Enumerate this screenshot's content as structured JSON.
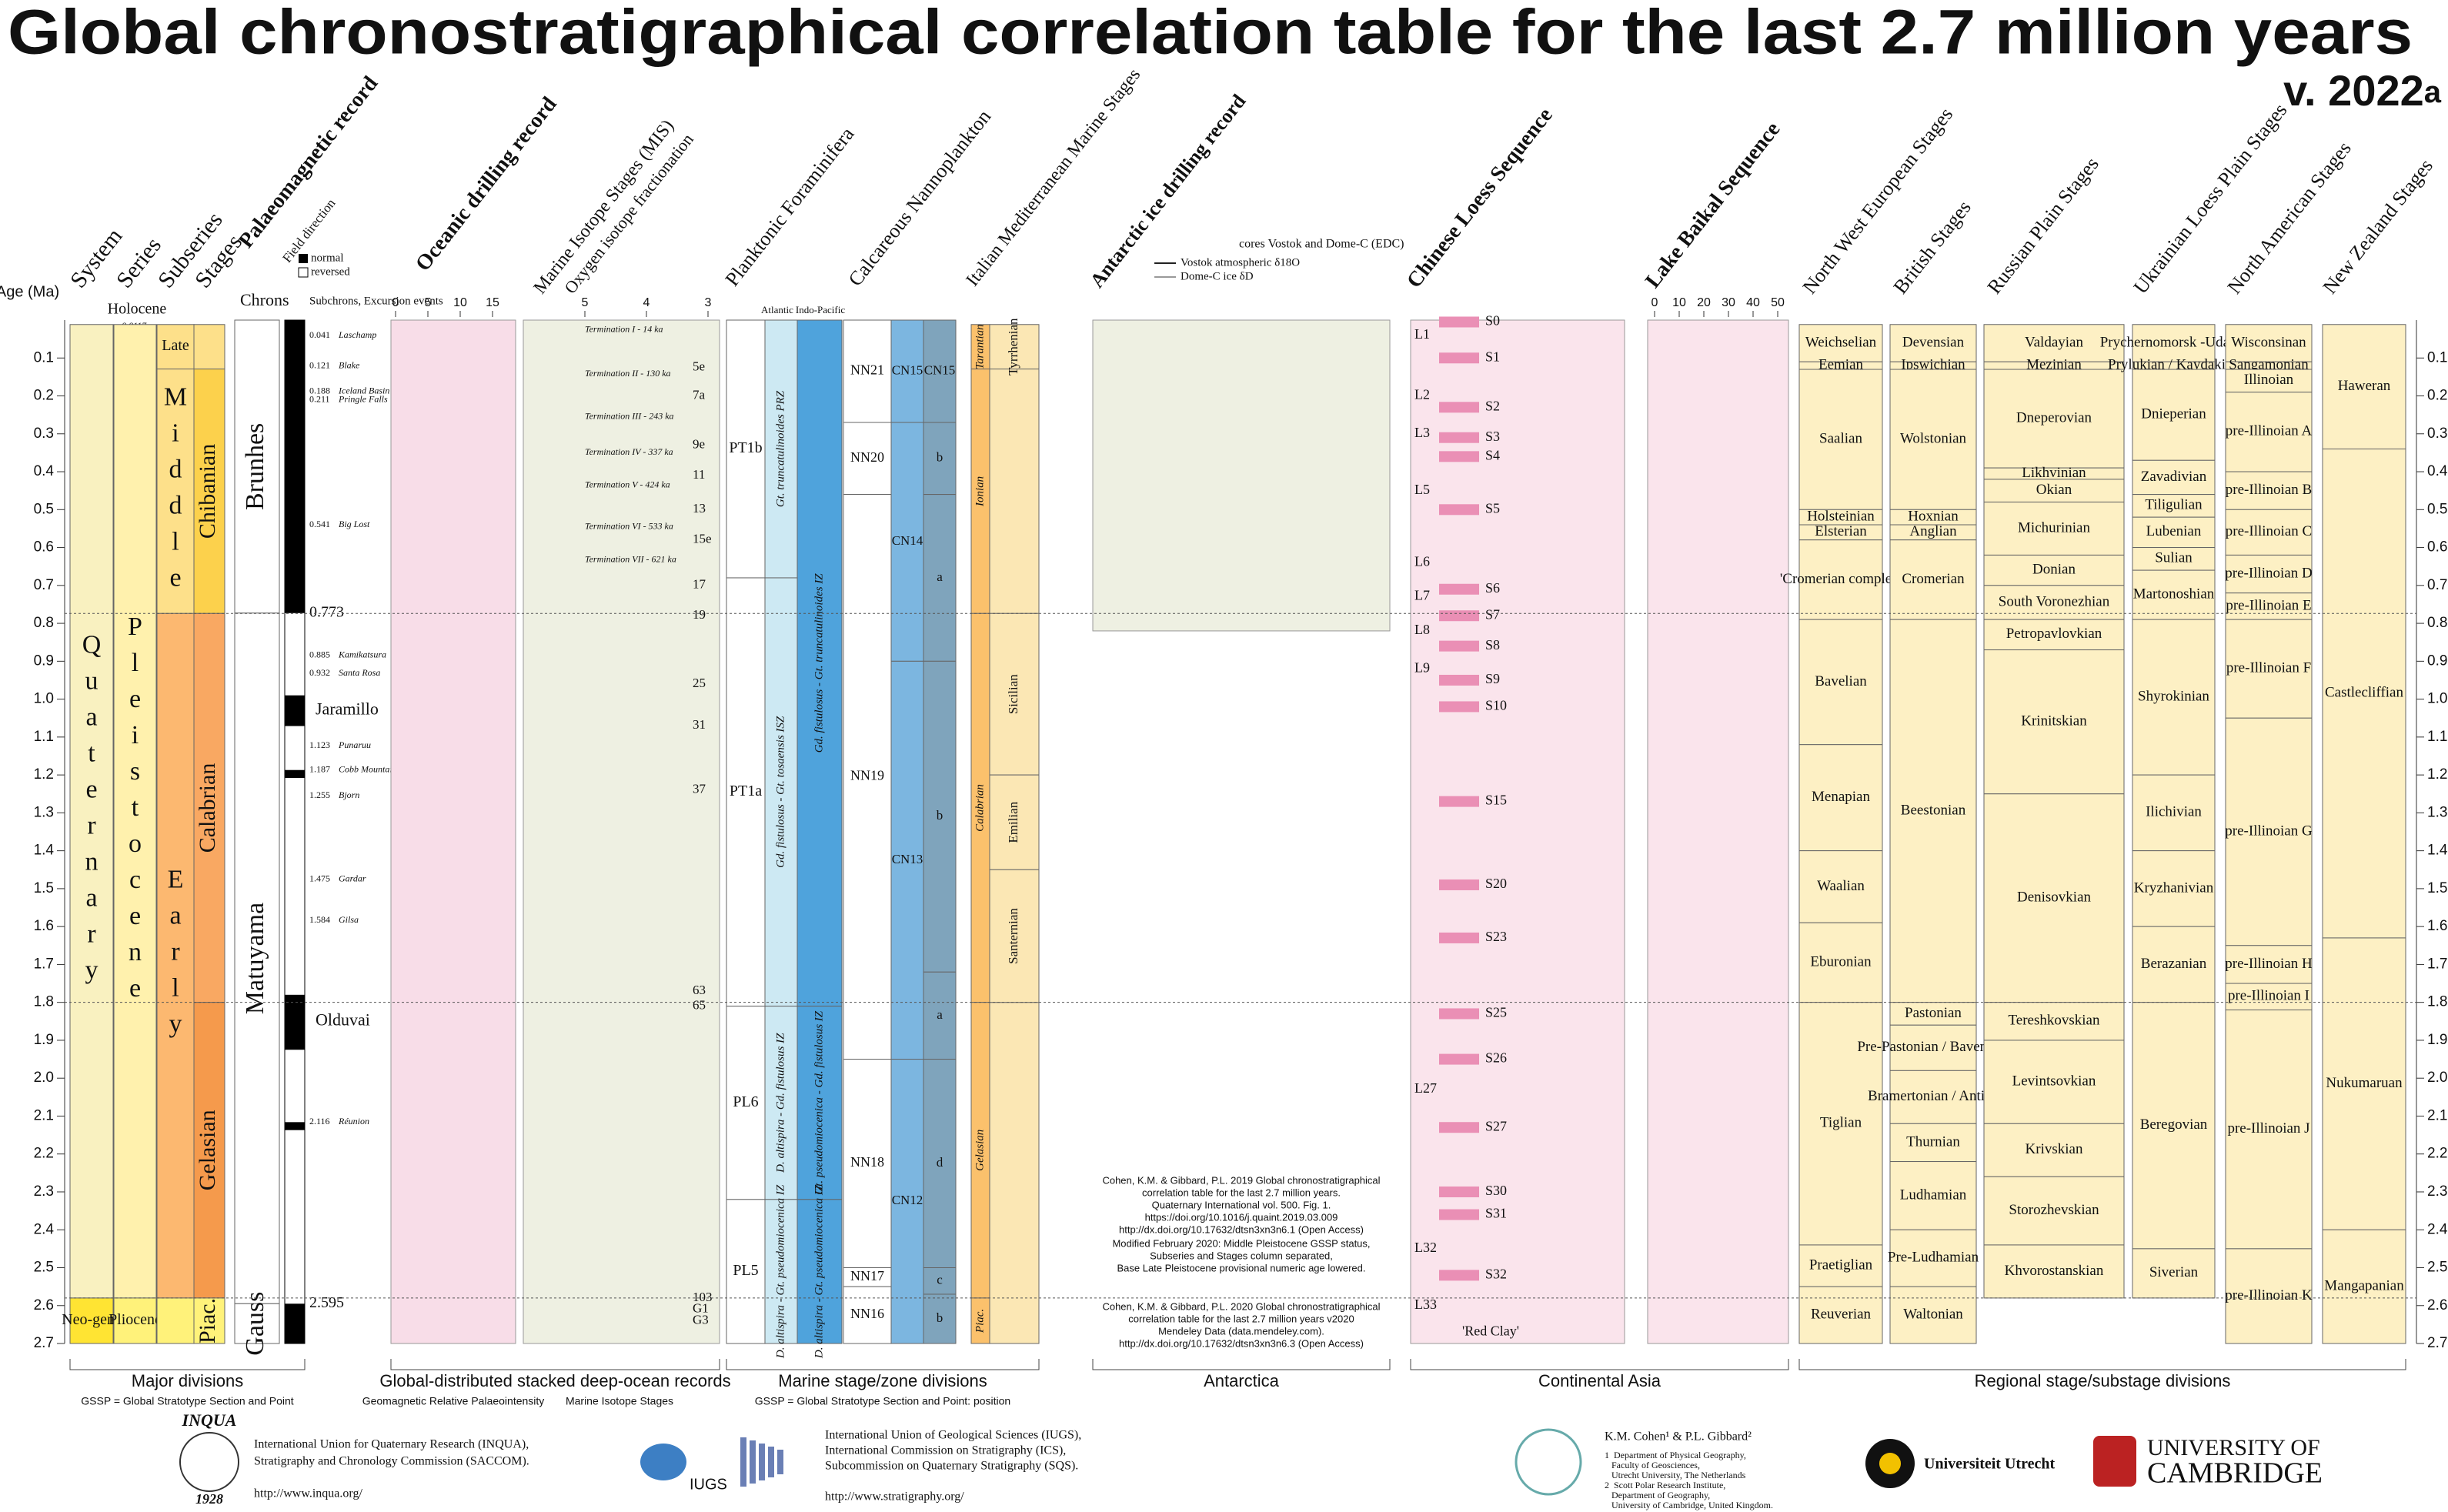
{
  "header": {
    "title": "Global chronostratigraphical correlation table for the last 2.7 million years",
    "version": "v. 2022",
    "version_suffix": "a"
  },
  "age_axis": {
    "label": "Age (Ma)",
    "ticks": [
      "0.1",
      "0.2",
      "0.3",
      "0.4",
      "0.5",
      "0.6",
      "0.7",
      "0.8",
      "0.9",
      "1.0",
      "1.1",
      "1.2",
      "1.3",
      "1.4",
      "1.5",
      "1.6",
      "1.7",
      "1.8",
      "1.9",
      "2.0",
      "2.1",
      "2.2",
      "2.3",
      "2.4",
      "2.5",
      "2.6",
      "2.7"
    ]
  },
  "column_headers": {
    "system": "System",
    "series": "Series",
    "subseries": "Subseries",
    "stages": "Stages",
    "palaeomagnetic": "Palaeomagnetic record",
    "field": "Field direction",
    "normal": "normal",
    "reversed": "reversed",
    "chrons": "Chrons",
    "subchrons": "Subchrons, Excursion events",
    "oceanic": "Oceanic drilling record",
    "mis": "Marine Isotope Stages (MIS)",
    "oxygen": "Oxygen isotope fractionation",
    "foram": "Planktonic Foraminifera",
    "nanno": "Calcareous Nannoplankton",
    "italian": "Italian Mediterranean Marine Stages",
    "antarctic": "Antarctic ice drilling record",
    "loess": "Chinese Loess Sequence",
    "baikal": "Lake Baikal Sequence",
    "nw_europe": "North West European Stages",
    "british": "British Stages",
    "russian": "Russian Plain Stages",
    "ukrainian": "Ukrainian Loess Plain Stages",
    "north_american": "North American Stages",
    "new_zealand": "New Zealand Stages",
    "atlantic": "Atlantic",
    "indo_pacific": "Indo-Pacific"
  },
  "holocene": {
    "name": "Holocene",
    "base": "0.0117"
  },
  "system": [
    {
      "name": "Quaternary",
      "top": 0.0117,
      "base": 2.58,
      "color": "#f9f1c0"
    },
    {
      "name": "Neo-gene",
      "top": 2.58,
      "base": 2.7,
      "color": "#ffe433"
    }
  ],
  "series": [
    {
      "name": "Pleistocene",
      "top": 0.0117,
      "base": 2.58,
      "color": "#fff1ad"
    },
    {
      "name": "Pliocene",
      "top": 2.58,
      "base": 2.7,
      "color": "#fff27a"
    }
  ],
  "subseries": [
    {
      "name": "Late",
      "top": 0.0117,
      "base": 0.129,
      "color": "#fde08a"
    },
    {
      "name": "Middle",
      "top": 0.129,
      "base": 0.774,
      "color": "#fde08a"
    },
    {
      "name": "Early",
      "top": 0.774,
      "base": 2.58,
      "color": "#fcb870"
    }
  ],
  "stages": [
    {
      "name": "Chibanian",
      "top": 0.129,
      "base": 0.774,
      "color": "#fcd14c"
    },
    {
      "name": "Calabrian",
      "top": 0.774,
      "base": 1.8,
      "color": "#f9a862"
    },
    {
      "name": "Gelasian",
      "top": 1.8,
      "base": 2.58,
      "color": "#f59a4c"
    },
    {
      "name": "Piac.",
      "top": 2.58,
      "base": 2.7,
      "color": "#fff27a"
    }
  ],
  "chrons": [
    {
      "name": "Brunhes",
      "top": 0,
      "base": 0.773
    },
    {
      "name": "Matuyama",
      "top": 0.773,
      "base": 2.595
    },
    {
      "name": "Gauss",
      "top": 2.595,
      "base": 2.7
    }
  ],
  "chron_boundaries": [
    "0.773",
    "2.595"
  ],
  "normal_intervals": [
    [
      0,
      0.773
    ],
    [
      0.99,
      1.071
    ],
    [
      1.187,
      1.208
    ],
    [
      1.78,
      1.925
    ],
    [
      2.116,
      2.137
    ],
    [
      2.595,
      2.7
    ]
  ],
  "subchron_names": [
    {
      "name": "Jaramillo",
      "age": 1.03
    },
    {
      "name": "Olduvai",
      "age": 1.85
    }
  ],
  "events": [
    {
      "age": "0.041",
      "name": "Laschamp"
    },
    {
      "age": "0.121",
      "name": "Blake"
    },
    {
      "age": "0.188",
      "name": "Iceland Basin"
    },
    {
      "age": "0.211",
      "name": "Pringle Falls"
    },
    {
      "age": "0.541",
      "name": "Big Lost"
    },
    {
      "age": "0.885",
      "name": "Kamikatsura"
    },
    {
      "age": "0.932",
      "name": "Santa Rosa"
    },
    {
      "age": "1.123",
      "name": "Punaruu"
    },
    {
      "age": "1.187",
      "name": "Cobb Mountain"
    },
    {
      "age": "1.255",
      "name": "Bjorn"
    },
    {
      "age": "1.475",
      "name": "Gardar"
    },
    {
      "age": "1.584",
      "name": "Gilsa"
    },
    {
      "age": "2.116",
      "name": "Réunion"
    }
  ],
  "geomag_ticks": [
    0,
    5,
    10,
    15
  ],
  "d18o_ticks": [
    5,
    4,
    3
  ],
  "baikal_ticks": [
    0,
    10,
    20,
    30,
    40,
    50
  ],
  "mis_labels": [
    {
      "name": "5e",
      "age": 0.125
    },
    {
      "name": "7a",
      "age": 0.2
    },
    {
      "name": "9e",
      "age": 0.33
    },
    {
      "name": "11",
      "age": 0.41
    },
    {
      "name": "13",
      "age": 0.5
    },
    {
      "name": "15e",
      "age": 0.58
    },
    {
      "name": "17",
      "age": 0.7
    },
    {
      "name": "19",
      "age": 0.78
    },
    {
      "name": "25",
      "age": 0.96
    },
    {
      "name": "31",
      "age": 1.07
    },
    {
      "name": "37",
      "age": 1.24
    },
    {
      "name": "63",
      "age": 1.77
    },
    {
      "name": "65",
      "age": 1.81
    },
    {
      "name": "103",
      "age": 2.58
    },
    {
      "name": "G1",
      "age": 2.61
    },
    {
      "name": "G3",
      "age": 2.64
    }
  ],
  "terminations": [
    {
      "name": "Termination I - 14 ka",
      "age": 0.014
    },
    {
      "name": "Termination II - 130 ka",
      "age": 0.13
    },
    {
      "name": "Termination III - 243 ka",
      "age": 0.243
    },
    {
      "name": "Termination IV - 337 ka",
      "age": 0.337
    },
    {
      "name": "Termination V - 424 ka",
      "age": 0.424
    },
    {
      "name": "Termination VI - 533 ka",
      "age": 0.533
    },
    {
      "name": "Termination VII - 621 ka",
      "age": 0.621
    }
  ],
  "foram_zones": [
    {
      "name": "PT1b",
      "top": 0,
      "base": 0.68
    },
    {
      "name": "PT1a",
      "top": 0.68,
      "base": 1.81
    },
    {
      "name": "PL6",
      "top": 1.81,
      "base": 2.32
    },
    {
      "name": "PL5",
      "top": 2.32,
      "base": 2.7
    }
  ],
  "foram_atlantic": [
    {
      "name": "Gt. truncatulinoides PRZ",
      "top": 0,
      "base": 0.68
    },
    {
      "name": "Gd. fistulosus - Gt. tosaensis ISZ",
      "top": 0.68,
      "base": 1.81
    },
    {
      "name": "D. altispira - Gd. fistulosus IZ",
      "top": 1.81,
      "base": 2.32
    },
    {
      "name": "D. altispira - Gt. pseudomiocenica IZ",
      "top": 2.32,
      "base": 2.7
    }
  ],
  "foram_indopacific": [
    {
      "name": "Gd. fistulosus - Gt. truncatulinoides IZ",
      "top": 0,
      "base": 1.81
    },
    {
      "name": "Gt. pseudomiocenica - Gd. fistulosus IZ",
      "top": 1.81,
      "base": 2.32
    },
    {
      "name": "D. altispira - Gt. pseudomiocenica IZ",
      "top": 2.32,
      "base": 2.7
    }
  ],
  "nanno_nn": [
    {
      "name": "NN21",
      "top": 0,
      "base": 0.27
    },
    {
      "name": "NN20",
      "top": 0.27,
      "base": 0.46
    },
    {
      "name": "NN19",
      "top": 0.46,
      "base": 1.95
    },
    {
      "name": "NN18",
      "top": 1.95,
      "base": 2.5
    },
    {
      "name": "NN17",
      "top": 2.5,
      "base": 2.55
    },
    {
      "name": "NN16",
      "top": 2.55,
      "base": 2.7
    }
  ],
  "nanno_cn": [
    {
      "name": "CN15",
      "top": 0,
      "base": 0.27
    },
    {
      "name": "CN14",
      "top": 0.27,
      "base": 0.9
    },
    {
      "name": "CN13",
      "top": 0.9,
      "base": 1.95
    },
    {
      "name": "CN12",
      "top": 1.95,
      "base": 2.7
    }
  ],
  "nanno_sub": [
    {
      "name": "CN15",
      "top": 0,
      "base": 0.27
    },
    {
      "name": "b",
      "top": 0.27,
      "base": 0.46
    },
    {
      "name": "a",
      "top": 0.46,
      "base": 0.9
    },
    {
      "name": "b",
      "top": 0.9,
      "base": 1.72
    },
    {
      "name": "a",
      "top": 1.72,
      "base": 1.95
    },
    {
      "name": "d",
      "top": 1.95,
      "base": 2.5
    },
    {
      "name": "c",
      "top": 2.5,
      "base": 2.57
    },
    {
      "name": "b",
      "top": 2.57,
      "base": 2.7
    }
  ],
  "italian_stages": [
    {
      "name": "Tarantian",
      "top": 0.0117,
      "base": 0.129
    },
    {
      "name": "Ionian",
      "top": 0.129,
      "base": 0.774
    },
    {
      "name": "Calabrian",
      "top": 0.774,
      "base": 1.8
    },
    {
      "name": "Gelasian",
      "top": 1.8,
      "base": 2.58
    },
    {
      "name": "Piac.",
      "top": 2.58,
      "base": 2.7
    }
  ],
  "italian_substages": [
    {
      "name": "Tyrrhenian",
      "top": 0.0117,
      "base": 0.129
    },
    {
      "name": "Sicilian",
      "top": 0.774,
      "base": 1.2
    },
    {
      "name": "Emilian",
      "top": 1.2,
      "base": 1.45
    },
    {
      "name": "Santernian",
      "top": 1.45,
      "base": 1.8
    }
  ],
  "antarctic": {
    "cores": "cores Vostok and Dome-C (EDC)",
    "legend": [
      "Vostok atmospheric δ18O",
      "Dome-C ice δD"
    ],
    "base": 0.82
  },
  "loess_layers": [
    {
      "name": "L1",
      "age": 0.04
    },
    {
      "name": "L2",
      "age": 0.2
    },
    {
      "name": "L3",
      "age": 0.3
    },
    {
      "name": "L5",
      "age": 0.45
    },
    {
      "name": "L6",
      "age": 0.64
    },
    {
      "name": "L7",
      "age": 0.73
    },
    {
      "name": "L8",
      "age": 0.82
    },
    {
      "name": "L9",
      "age": 0.92
    },
    {
      "name": "L27",
      "age": 2.03
    },
    {
      "name": "L32",
      "age": 2.45
    },
    {
      "name": "L33",
      "age": 2.6
    }
  ],
  "palaeosols": [
    {
      "name": "S0",
      "age": 0.005
    },
    {
      "name": "S1",
      "age": 0.1
    },
    {
      "name": "S2",
      "age": 0.23
    },
    {
      "name": "S3",
      "age": 0.31
    },
    {
      "name": "S4",
      "age": 0.36
    },
    {
      "name": "S5",
      "age": 0.5
    },
    {
      "name": "S6",
      "age": 0.71
    },
    {
      "name": "S7",
      "age": 0.78
    },
    {
      "name": "S8",
      "age": 0.86
    },
    {
      "name": "S9",
      "age": 0.95
    },
    {
      "name": "S10",
      "age": 1.02
    },
    {
      "name": "S15",
      "age": 1.27
    },
    {
      "name": "S20",
      "age": 1.49
    },
    {
      "name": "S23",
      "age": 1.63
    },
    {
      "name": "S25",
      "age": 1.83
    },
    {
      "name": "S26",
      "age": 1.95
    },
    {
      "name": "S27",
      "age": 2.13
    },
    {
      "name": "S30",
      "age": 2.3
    },
    {
      "name": "S31",
      "age": 2.36
    },
    {
      "name": "S32",
      "age": 2.52
    }
  ],
  "red_clay": {
    "name": "'Red Clay'",
    "age": 2.67
  },
  "nw_europe": [
    {
      "name": "Weichselian",
      "top": 0.0117,
      "base": 0.11
    },
    {
      "name": "Eemian",
      "top": 0.11,
      "base": 0.13
    },
    {
      "name": "Saalian",
      "top": 0.13,
      "base": 0.5
    },
    {
      "name": "Holsteinian",
      "top": 0.5,
      "base": 0.54
    },
    {
      "name": "Elsterian",
      "top": 0.54,
      "base": 0.58
    },
    {
      "name": "'Cromerian complex'",
      "top": 0.58,
      "base": 0.79
    },
    {
      "name": "Bavelian",
      "top": 0.79,
      "base": 1.12
    },
    {
      "name": "Menapian",
      "top": 1.12,
      "base": 1.4
    },
    {
      "name": "Waalian",
      "top": 1.4,
      "base": 1.59
    },
    {
      "name": "Eburonian",
      "top": 1.59,
      "base": 1.8
    },
    {
      "name": "Tiglian",
      "top": 1.8,
      "base": 2.44
    },
    {
      "name": "Praetiglian",
      "top": 2.44,
      "base": 2.55
    },
    {
      "name": "Reuverian",
      "top": 2.55,
      "base": 2.7
    }
  ],
  "british": [
    {
      "name": "Devensian",
      "top": 0.0117,
      "base": 0.11
    },
    {
      "name": "Ipswichian",
      "top": 0.11,
      "base": 0.13
    },
    {
      "name": "Wolstonian",
      "top": 0.13,
      "base": 0.5
    },
    {
      "name": "Hoxnian",
      "top": 0.5,
      "base": 0.54
    },
    {
      "name": "Anglian",
      "top": 0.54,
      "base": 0.58
    },
    {
      "name": "Cromerian",
      "top": 0.58,
      "base": 0.79
    },
    {
      "name": "Beestonian",
      "top": 0.79,
      "base": 1.8
    },
    {
      "name": "Pastonian",
      "top": 1.8,
      "base": 1.86
    },
    {
      "name": "Pre-Pastonian / Baventian",
      "top": 1.86,
      "base": 1.98
    },
    {
      "name": "Bramertonian / Antian",
      "top": 1.98,
      "base": 2.12
    },
    {
      "name": "Thurnian",
      "top": 2.12,
      "base": 2.22
    },
    {
      "name": "Ludhamian",
      "top": 2.22,
      "base": 2.4
    },
    {
      "name": "Pre-Ludhamian",
      "top": 2.4,
      "base": 2.55
    },
    {
      "name": "Waltonian",
      "top": 2.55,
      "base": 2.7
    }
  ],
  "russian": [
    {
      "name": "Valdayian",
      "top": 0.0117,
      "base": 0.11
    },
    {
      "name": "Mezinian",
      "top": 0.11,
      "base": 0.13
    },
    {
      "name": "Dneperovian",
      "top": 0.13,
      "base": 0.39
    },
    {
      "name": "Likhvinian",
      "top": 0.39,
      "base": 0.42
    },
    {
      "name": "Okian",
      "top": 0.42,
      "base": 0.48
    },
    {
      "name": "Michurinian",
      "top": 0.48,
      "base": 0.62
    },
    {
      "name": "Donian",
      "top": 0.62,
      "base": 0.7
    },
    {
      "name": "South Voronezhian",
      "top": 0.7,
      "base": 0.79
    },
    {
      "name": "Petropavlovkian",
      "top": 0.79,
      "base": 0.87
    },
    {
      "name": "Krinitskian",
      "top": 0.87,
      "base": 1.25
    },
    {
      "name": "Denisovkian",
      "top": 1.25,
      "base": 1.8
    },
    {
      "name": "Tereshkovskian",
      "top": 1.8,
      "base": 1.9
    },
    {
      "name": "Levintsovkian",
      "top": 1.9,
      "base": 2.12
    },
    {
      "name": "Krivskian",
      "top": 2.12,
      "base": 2.26
    },
    {
      "name": "Storozhevskian",
      "top": 2.26,
      "base": 2.44
    },
    {
      "name": "Khvorostanskian",
      "top": 2.44,
      "base": 2.58
    }
  ],
  "ukrainian": [
    {
      "name": "Prychernomorsk -Udaian",
      "top": 0.0117,
      "base": 0.11
    },
    {
      "name": "Prylukian / Kaydakian",
      "top": 0.11,
      "base": 0.13
    },
    {
      "name": "Dnieperian",
      "top": 0.13,
      "base": 0.37
    },
    {
      "name": "Zavadivian",
      "top": 0.37,
      "base": 0.46
    },
    {
      "name": "Tiligulian",
      "top": 0.46,
      "base": 0.52
    },
    {
      "name": "Lubenian",
      "top": 0.52,
      "base": 0.6
    },
    {
      "name": "Sulian",
      "top": 0.6,
      "base": 0.66
    },
    {
      "name": "Martonoshian",
      "top": 0.66,
      "base": 0.79
    },
    {
      "name": "Shyrokinian",
      "top": 0.79,
      "base": 1.2
    },
    {
      "name": "Ilichivian",
      "top": 1.2,
      "base": 1.4
    },
    {
      "name": "Kryzhanivian",
      "top": 1.4,
      "base": 1.6
    },
    {
      "name": "Berazanian",
      "top": 1.6,
      "base": 1.8
    },
    {
      "name": "Beregovian",
      "top": 1.8,
      "base": 2.45
    },
    {
      "name": "Siverian",
      "top": 2.45,
      "base": 2.58
    }
  ],
  "north_american": [
    {
      "name": "Wisconsinan",
      "top": 0.0117,
      "base": 0.11
    },
    {
      "name": "Sangamonian",
      "top": 0.11,
      "base": 0.13
    },
    {
      "name": "Illinoian",
      "top": 0.13,
      "base": 0.19
    },
    {
      "name": "pre-Illinoian A",
      "top": 0.19,
      "base": 0.4
    },
    {
      "name": "pre-Illinoian B",
      "top": 0.4,
      "base": 0.5
    },
    {
      "name": "pre-Illinoian C",
      "top": 0.5,
      "base": 0.62
    },
    {
      "name": "pre-Illinoian D",
      "top": 0.62,
      "base": 0.72
    },
    {
      "name": "pre-Illinoian E",
      "top": 0.72,
      "base": 0.79
    },
    {
      "name": "pre-Illinoian F",
      "top": 0.79,
      "base": 1.05
    },
    {
      "name": "pre-Illinoian G",
      "top": 1.05,
      "base": 1.65
    },
    {
      "name": "pre-Illinoian H",
      "top": 1.65,
      "base": 1.75
    },
    {
      "name": "pre-Illinoian I",
      "top": 1.75,
      "base": 1.82
    },
    {
      "name": "pre-Illinoian J",
      "top": 1.82,
      "base": 2.45
    },
    {
      "name": "pre-Illinoian K",
      "top": 2.45,
      "base": 2.7
    }
  ],
  "new_zealand": [
    {
      "name": "Haweran",
      "top": 0.0117,
      "base": 0.34
    },
    {
      "name": "Castlecliffian",
      "top": 0.34,
      "base": 1.63
    },
    {
      "name": "Nukumaruan",
      "top": 1.63,
      "base": 2.4
    },
    {
      "name": "Mangapanian",
      "top": 2.4,
      "base": 2.7
    }
  ],
  "groups": [
    {
      "name": "Major divisions",
      "note": "GSSP = Global Stratotype Section and Point"
    },
    {
      "name": "Global-distributed stacked deep-ocean records",
      "notes": [
        "Geomagnetic Relative Palaeointensity",
        "Marine Isotope Stages"
      ]
    },
    {
      "name": "Marine stage/zone divisions",
      "note": "GSSP = Global Stratotype Section and Point: position"
    },
    {
      "name": "Antarctica"
    },
    {
      "name": "Continental Asia"
    },
    {
      "name": "Regional stage/substage divisions"
    }
  ],
  "citation": [
    [
      "Cohen, K.M. & Gibbard, P.L. 2019 Global chronostratigraphical",
      "correlation table for the last 2.7 million years.",
      "Quaternary International vol. 500. Fig. 1.",
      "https://doi.org/10.1016/j.quaint.2019.03.009",
      "http://dx.doi.org/10.17632/dtsn3xn3n6.1 (Open Access)"
    ],
    [
      "Modified February 2020: Middle Pleistocene GSSP status,",
      "Subseries and Stages column separated,",
      "Base Late Pleistocene provisional numeric age lowered."
    ],
    [
      "Cohen, K.M. & Gibbard, P.L. 2020 Global chronostratigraphical",
      "correlation table for the last 2.7 million years  v2020",
      "Mendeley Data (data.mendeley.com).",
      "http://dx.doi.org/10.17632/dtsn3xn3n6.3 (Open Access)"
    ]
  ],
  "footer": {
    "inqua_logo": [
      "INQUA",
      "1928"
    ],
    "inqua": [
      "International Union for Quaternary Research (INQUA),",
      "Stratigraphy and Chronology Commission (SACCOM).",
      "http://www.inqua.org/"
    ],
    "iugs_logo": "IUGS",
    "iugs": [
      "International Union of Geological Sciences (IUGS),",
      "International Commission on Stratigraphy (ICS),",
      "Subcommission on Quaternary Stratigraphy (SQS).",
      "http://www.stratigraphy.org/"
    ],
    "authors": "K.M. Cohen¹ & P.L. Gibbard²",
    "affiliations": [
      "1  Department of Physical Geography,",
      "   Faculty of Geosciences,",
      "   Utrecht University, The Netherlands",
      "2  Scott Polar Research Institute,",
      "   Department of Geography,",
      "   University of Cambridge, United Kingdom."
    ],
    "utrecht": "Universiteit Utrecht",
    "cambridge": [
      "UNIVERSITY OF",
      "CAMBRIDGE"
    ]
  }
}
